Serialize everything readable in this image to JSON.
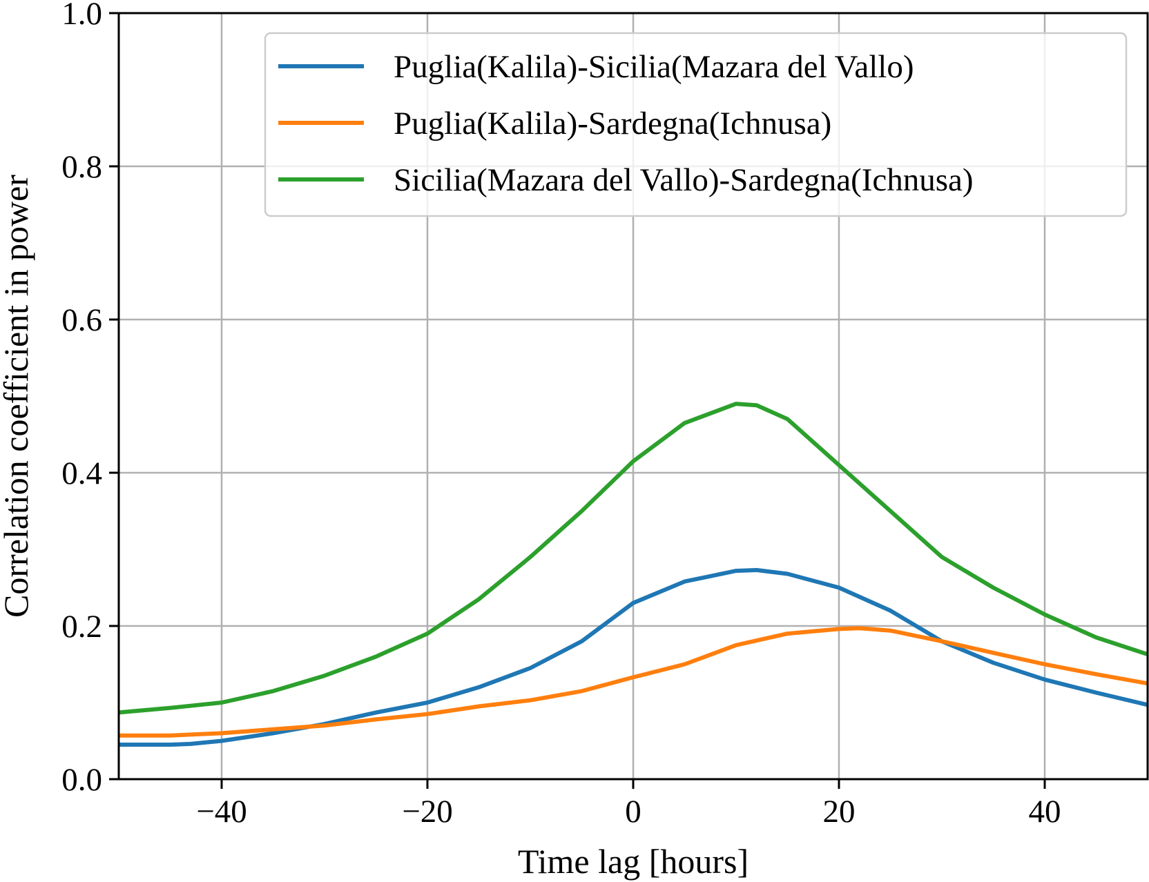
{
  "chart_data": {
    "type": "line",
    "title": "",
    "xlabel": "Time lag [hours]",
    "ylabel": "Correlation coefficient in power",
    "xlim": [
      -50,
      50
    ],
    "ylim": [
      0,
      1.0
    ],
    "xticks": [
      -40,
      -20,
      0,
      20,
      40
    ],
    "xtick_labels": [
      "−40",
      "−20",
      "0",
      "20",
      "40"
    ],
    "yticks": [
      0,
      0.2,
      0.4,
      0.6,
      0.8,
      1.0
    ],
    "ytick_labels": [
      "0.0",
      "0.2",
      "0.4",
      "0.6",
      "0.8",
      "1.0"
    ],
    "grid": true,
    "legend_position": "top-right",
    "series": [
      {
        "name": "Puglia(Kalila)-Sicilia(Mazara del Vallo)",
        "color": "#1f77b4",
        "x": [
          -50,
          -45,
          -43,
          -40,
          -35,
          -30,
          -25,
          -20,
          -15,
          -10,
          -5,
          0,
          5,
          10,
          12,
          15,
          20,
          25,
          30,
          35,
          40,
          45,
          50
        ],
        "y": [
          0.045,
          0.045,
          0.046,
          0.05,
          0.06,
          0.072,
          0.087,
          0.1,
          0.12,
          0.145,
          0.18,
          0.23,
          0.258,
          0.272,
          0.273,
          0.268,
          0.25,
          0.22,
          0.18,
          0.152,
          0.13,
          0.113,
          0.097
        ]
      },
      {
        "name": "Puglia(Kalila)-Sardegna(Ichnusa)",
        "color": "#ff7f0e",
        "x": [
          -50,
          -45,
          -40,
          -35,
          -30,
          -25,
          -20,
          -15,
          -10,
          -5,
          0,
          5,
          10,
          15,
          20,
          22,
          25,
          30,
          35,
          40,
          45,
          50
        ],
        "y": [
          0.057,
          0.057,
          0.06,
          0.065,
          0.07,
          0.078,
          0.085,
          0.095,
          0.103,
          0.115,
          0.133,
          0.15,
          0.175,
          0.19,
          0.196,
          0.197,
          0.194,
          0.18,
          0.165,
          0.15,
          0.137,
          0.125
        ]
      },
      {
        "name": "Sicilia(Mazara del Vallo)-Sardegna(Ichnusa)",
        "color": "#2ca02c",
        "x": [
          -50,
          -45,
          -40,
          -35,
          -30,
          -25,
          -20,
          -15,
          -10,
          -5,
          0,
          5,
          10,
          12,
          15,
          20,
          25,
          30,
          35,
          40,
          45,
          50
        ],
        "y": [
          0.087,
          0.093,
          0.1,
          0.115,
          0.135,
          0.16,
          0.19,
          0.235,
          0.29,
          0.35,
          0.415,
          0.465,
          0.49,
          0.488,
          0.47,
          0.41,
          0.35,
          0.29,
          0.25,
          0.215,
          0.185,
          0.163
        ]
      }
    ]
  }
}
